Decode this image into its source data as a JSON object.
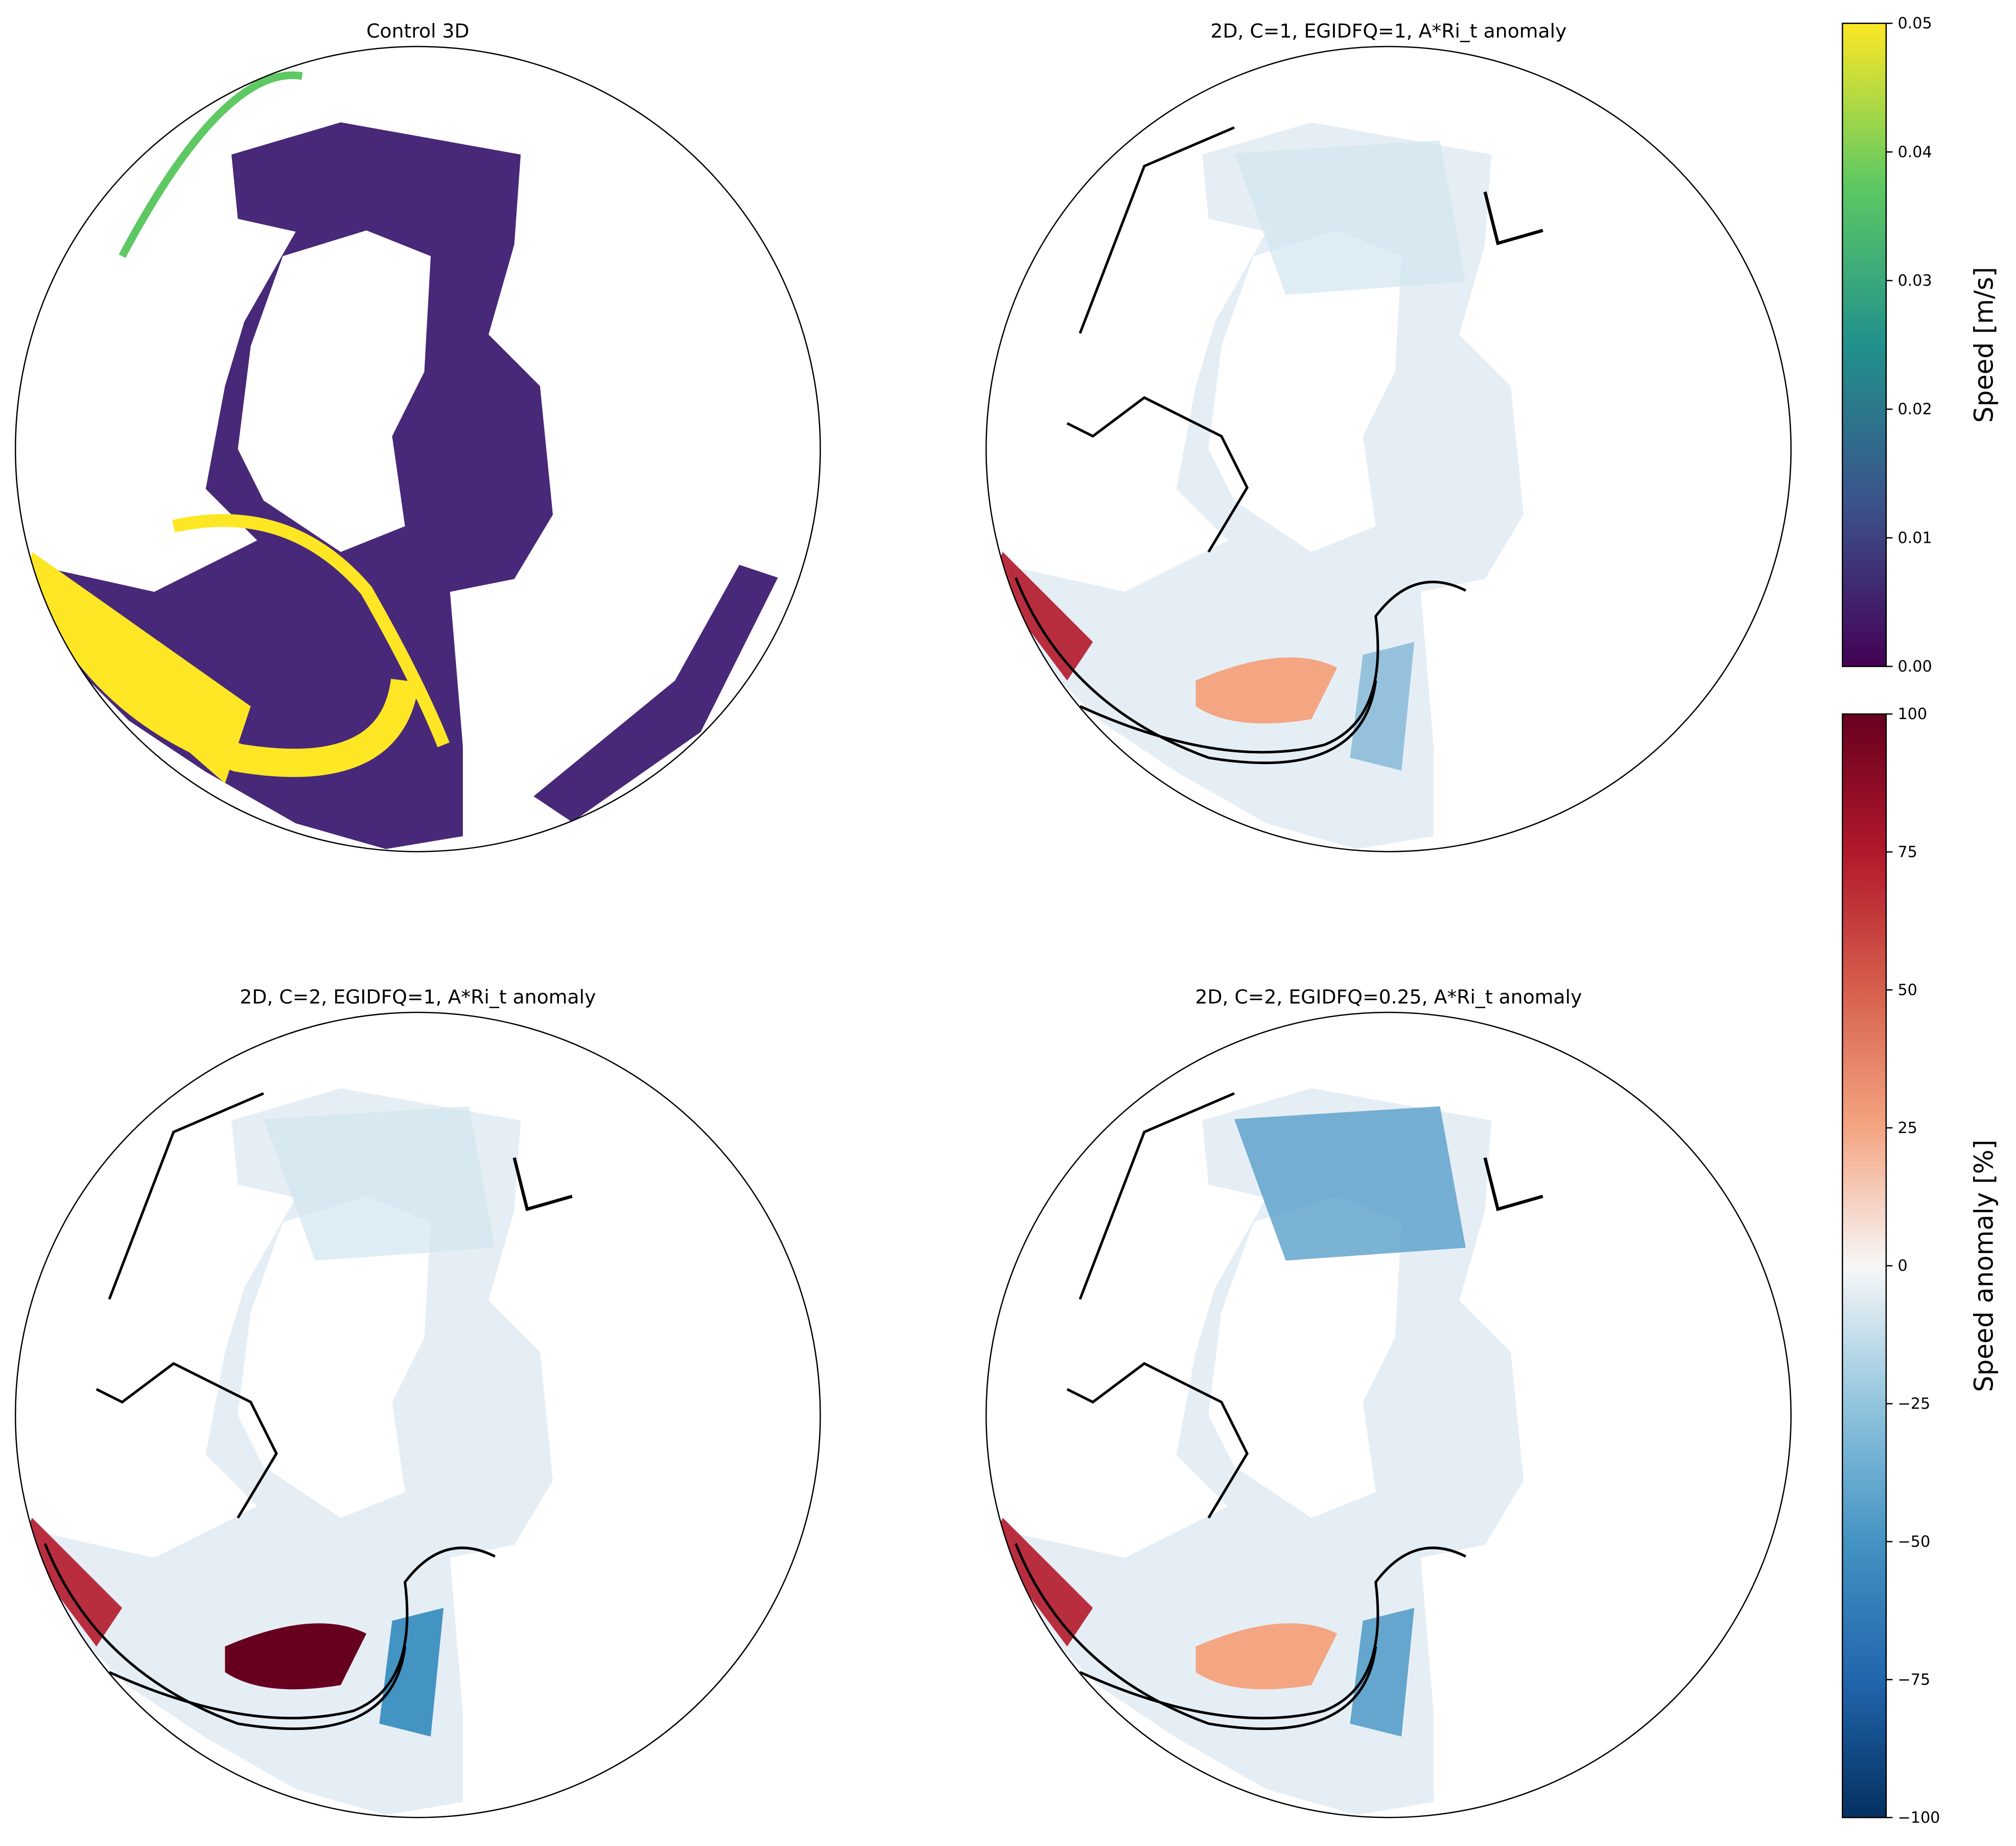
{
  "chart_data": {
    "type": "heatmap",
    "projection": "orthographic",
    "panels": [
      {
        "title": "Control 3D",
        "variable": "speed",
        "colormap": "viridis"
      },
      {
        "title": "2D, C=1, EGIDFQ=1, A*Ri_t anomaly",
        "variable": "speed anomaly",
        "colormap": "RdBu_r",
        "intensity": 0.5
      },
      {
        "title": "2D, C=2, EGIDFQ=1, A*Ri_t anomaly",
        "variable": "speed anomaly",
        "colormap": "RdBu_r",
        "intensity": 1.0
      },
      {
        "title": "2D, C=2, EGIDFQ=0.25, A*Ri_t anomaly",
        "variable": "speed anomaly",
        "colormap": "RdBu_r",
        "intensity": 0.8
      }
    ],
    "colorbars": [
      {
        "label": "Speed [m/s]",
        "range": [
          0,
          0.05
        ],
        "ticks": [
          0.0,
          0.01,
          0.02,
          0.03,
          0.04,
          0.05
        ],
        "tick_labels": [
          "0.00",
          "0.01",
          "0.02",
          "0.03",
          "0.04",
          "0.05"
        ],
        "colors": [
          "#440154",
          "#3b528b",
          "#21918c",
          "#5ec962",
          "#fde725"
        ]
      },
      {
        "label": "Speed anomaly [%]",
        "range": [
          -100,
          100
        ],
        "ticks": [
          -100,
          -75,
          -50,
          -25,
          0,
          25,
          50,
          75,
          100
        ],
        "tick_labels": [
          "−100",
          "−75",
          "−50",
          "−25",
          "0",
          "25",
          "50",
          "75",
          "100"
        ],
        "colors": [
          "#053061",
          "#2166ac",
          "#4393c3",
          "#92c5de",
          "#f7f7f7",
          "#f4a582",
          "#d6604d",
          "#b2182b",
          "#67001f"
        ]
      }
    ]
  }
}
